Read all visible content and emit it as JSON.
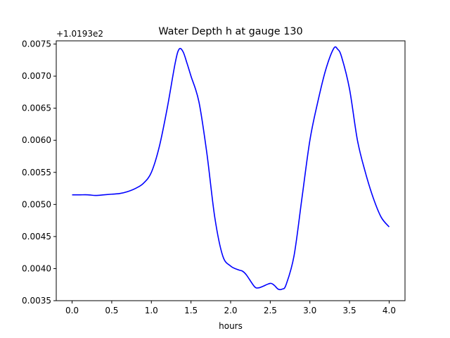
{
  "chart_data": {
    "type": "line",
    "title": "Water Depth h at gauge 130",
    "xlabel": "hours",
    "ylabel": "",
    "y_offset_label": "+1.0193e2",
    "xlim": [
      -0.2,
      4.2
    ],
    "ylim": [
      0.0035,
      0.00755
    ],
    "x_ticks": [
      0.0,
      0.5,
      1.0,
      1.5,
      2.0,
      2.5,
      3.0,
      3.5,
      4.0
    ],
    "x_tick_labels": [
      "0.0",
      "0.5",
      "1.0",
      "1.5",
      "2.0",
      "2.5",
      "3.0",
      "3.5",
      "4.0"
    ],
    "y_ticks": [
      0.0035,
      0.004,
      0.0045,
      0.005,
      0.0055,
      0.006,
      0.0065,
      0.007,
      0.0075
    ],
    "y_tick_labels": [
      "0.0035",
      "0.0040",
      "0.0045",
      "0.0050",
      "0.0055",
      "0.0060",
      "0.0065",
      "0.0070",
      "0.0075"
    ],
    "grid": false,
    "series": [
      {
        "color": "#0000ff",
        "x": [
          0.0,
          0.1,
          0.2,
          0.3,
          0.4,
          0.5,
          0.6,
          0.7,
          0.8,
          0.9,
          1.0,
          1.1,
          1.2,
          1.3,
          1.35,
          1.4,
          1.45,
          1.5,
          1.6,
          1.7,
          1.8,
          1.9,
          2.0,
          2.1,
          2.15,
          2.2,
          2.3,
          2.35,
          2.4,
          2.5,
          2.55,
          2.6,
          2.65,
          2.7,
          2.8,
          2.9,
          3.0,
          3.1,
          3.2,
          3.3,
          3.35,
          3.4,
          3.5,
          3.6,
          3.7,
          3.8,
          3.9,
          4.0
        ],
        "y": [
          0.00515,
          0.00515,
          0.00515,
          0.00514,
          0.00515,
          0.00516,
          0.00517,
          0.0052,
          0.00525,
          0.00533,
          0.0055,
          0.0059,
          0.0065,
          0.0072,
          0.00742,
          0.00738,
          0.0072,
          0.007,
          0.0066,
          0.0058,
          0.0048,
          0.0042,
          0.00404,
          0.00398,
          0.00396,
          0.0039,
          0.00372,
          0.0037,
          0.00372,
          0.00377,
          0.00374,
          0.00368,
          0.00368,
          0.00375,
          0.0042,
          0.0051,
          0.006,
          0.0066,
          0.0071,
          0.00743,
          0.00742,
          0.0073,
          0.0068,
          0.006,
          0.0055,
          0.0051,
          0.0048,
          0.00465
        ]
      }
    ]
  }
}
